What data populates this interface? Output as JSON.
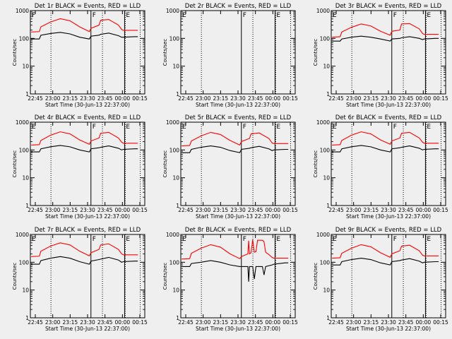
{
  "figure": {
    "background": "#efefef",
    "event_color": "#000000",
    "lld_color": "#ff0000"
  },
  "chart_data": [
    {
      "type": "line",
      "detector": "1r",
      "title": "Det 1r BLACK = Events, RED = LLD",
      "xlabel": "Start Time (30-Jun-13 22:37:00)",
      "ylabel": "Counts/sec",
      "x_ticks": [
        "22:45",
        "23:00",
        "23:15",
        "23:30",
        "23:45",
        "00:00",
        "00:15"
      ],
      "y_ticks": [
        "1",
        "10",
        "100",
        "1000"
      ],
      "yscale": "log",
      "ylim": [
        1,
        1000
      ],
      "flags": [
        {
          "label": "F",
          "pos": 5
        },
        {
          "label": "F",
          "pos": 36
        },
        {
          "label": "E",
          "pos": 56
        }
      ],
      "x": [
        0,
        5,
        6,
        12,
        18,
        24,
        30,
        36,
        37,
        42,
        43,
        48,
        54,
        56,
        57,
        64,
        66
      ],
      "series": [
        {
          "name": "BLACK = Events",
          "color": "#000000",
          "values": [
            95,
            95,
            130,
            150,
            165,
            145,
            110,
            95,
            120,
            130,
            140,
            155,
            125,
            110,
            110,
            115,
            115
          ]
        },
        {
          "name": "RED = LLD",
          "color": "#ff0000",
          "values": [
            170,
            175,
            260,
            390,
            510,
            430,
            260,
            175,
            230,
            300,
            450,
            480,
            300,
            210,
            195,
            195,
            195
          ]
        }
      ]
    },
    {
      "type": "line",
      "detector": "2r",
      "title": "Det 2r BLACK = Events, RED = LLD",
      "xlabel": "Start Time (30-Jun-13 22:37:00)",
      "ylabel": "Counts/sec",
      "x_ticks": [
        "22:45",
        "23:00",
        "23:15",
        "23:30",
        "23:45",
        "00:00",
        "00:15"
      ],
      "y_ticks": [
        "1",
        "10",
        "100",
        "1000"
      ],
      "yscale": "log",
      "ylim": [
        1,
        1000
      ],
      "flags": [
        {
          "label": "E",
          "pos": 5
        },
        {
          "label": "F",
          "pos": 36
        },
        {
          "label": "E",
          "pos": 56
        }
      ],
      "x": [],
      "series": []
    },
    {
      "type": "line",
      "detector": "3r",
      "title": "Det 3r BLACK = Events, RED = LLD",
      "xlabel": "Start Time (30-Jun-13 22:37:00)",
      "ylabel": "Counts/sec",
      "x_ticks": [
        "22:45",
        "23:00",
        "23:15",
        "23:30",
        "23:45",
        "00:00",
        "00:15"
      ],
      "y_ticks": [
        "1",
        "10",
        "100",
        "1000"
      ],
      "yscale": "log",
      "ylim": [
        1,
        1000
      ],
      "flags": [
        {
          "label": "E",
          "pos": 5
        },
        {
          "label": "F",
          "pos": 36
        },
        {
          "label": "E",
          "pos": 56
        }
      ],
      "x": [
        0,
        5,
        6,
        12,
        18,
        24,
        30,
        36,
        37,
        42,
        43,
        48,
        54,
        56,
        57,
        64,
        66
      ],
      "series": [
        {
          "name": "BLACK = Events",
          "color": "#000000",
          "values": [
            80,
            80,
            95,
            110,
            120,
            110,
            95,
            80,
            95,
            100,
            105,
            115,
            100,
            90,
            95,
            100,
            100
          ]
        },
        {
          "name": "RED = LLD",
          "color": "#ff0000",
          "values": [
            110,
            115,
            170,
            250,
            330,
            280,
            180,
            130,
            180,
            200,
            330,
            340,
            220,
            150,
            140,
            140,
            140
          ]
        }
      ]
    },
    {
      "type": "line",
      "detector": "4r",
      "title": "Det 4r BLACK = Events, RED = LLD",
      "xlabel": "Start Time (30-Jun-13 22:37:00)",
      "ylabel": "Counts/sec",
      "x_ticks": [
        "22:45",
        "23:00",
        "23:15",
        "23:30",
        "23:45",
        "00:00",
        "00:15"
      ],
      "y_ticks": [
        "1",
        "10",
        "100",
        "1000"
      ],
      "yscale": "log",
      "ylim": [
        1,
        1000
      ],
      "flags": [
        {
          "label": "E",
          "pos": 5
        },
        {
          "label": "F",
          "pos": 36
        },
        {
          "label": "E",
          "pos": 56
        }
      ],
      "x": [
        0,
        5,
        6,
        12,
        18,
        24,
        30,
        36,
        37,
        42,
        43,
        48,
        54,
        56,
        57,
        64,
        66
      ],
      "series": [
        {
          "name": "BLACK = Events",
          "color": "#000000",
          "values": [
            85,
            85,
            110,
            130,
            145,
            130,
            100,
            85,
            110,
            120,
            125,
            140,
            115,
            100,
            105,
            110,
            110
          ]
        },
        {
          "name": "RED = LLD",
          "color": "#ff0000",
          "values": [
            150,
            155,
            220,
            340,
            450,
            380,
            230,
            160,
            210,
            270,
            400,
            430,
            270,
            190,
            175,
            175,
            175
          ]
        }
      ]
    },
    {
      "type": "line",
      "detector": "5r",
      "title": "Det 5r BLACK = Events, RED = LLD",
      "xlabel": "Start Time (30-Jun-13 22:37:00)",
      "ylabel": "Counts/sec",
      "x_ticks": [
        "22:45",
        "23:00",
        "23:15",
        "23:30",
        "23:45",
        "00:00",
        "00:15"
      ],
      "y_ticks": [
        "1",
        "10",
        "100",
        "1000"
      ],
      "yscale": "log",
      "ylim": [
        1,
        1000
      ],
      "flags": [
        {
          "label": "E",
          "pos": 5
        },
        {
          "label": "F",
          "pos": 36
        },
        {
          "label": "E",
          "pos": 56
        }
      ],
      "x": [
        0,
        5,
        6,
        12,
        18,
        24,
        30,
        36,
        37,
        42,
        43,
        48,
        54,
        56,
        57,
        64,
        66
      ],
      "series": [
        {
          "name": "BLACK = Events",
          "color": "#000000",
          "values": [
            80,
            80,
            105,
            125,
            140,
            125,
            95,
            80,
            105,
            115,
            120,
            135,
            110,
            95,
            100,
            105,
            105
          ]
        },
        {
          "name": "RED = LLD",
          "color": "#ff0000",
          "values": [
            140,
            145,
            210,
            320,
            430,
            360,
            220,
            150,
            200,
            260,
            380,
            410,
            260,
            180,
            170,
            170,
            170
          ]
        }
      ]
    },
    {
      "type": "line",
      "detector": "6r",
      "title": "Det 6r BLACK = Events, RED = LLD",
      "xlabel": "Start Time (30-Jun-13 22:37:00)",
      "ylabel": "Counts/sec",
      "x_ticks": [
        "22:45",
        "23:00",
        "23:15",
        "23:30",
        "23:45",
        "00:00",
        "00:15"
      ],
      "y_ticks": [
        "1",
        "10",
        "100",
        "1000"
      ],
      "yscale": "log",
      "ylim": [
        1,
        1000
      ],
      "flags": [
        {
          "label": "E",
          "pos": 5
        },
        {
          "label": "F",
          "pos": 36
        },
        {
          "label": "E",
          "pos": 56
        }
      ],
      "x": [
        0,
        5,
        6,
        12,
        18,
        24,
        30,
        36,
        37,
        42,
        43,
        48,
        54,
        56,
        57,
        64,
        66
      ],
      "series": [
        {
          "name": "BLACK = Events",
          "color": "#000000",
          "values": [
            85,
            85,
            110,
            130,
            145,
            130,
            100,
            85,
            110,
            120,
            125,
            140,
            115,
            100,
            105,
            110,
            110
          ]
        },
        {
          "name": "RED = LLD",
          "color": "#ff0000",
          "values": [
            150,
            155,
            220,
            340,
            450,
            380,
            230,
            160,
            210,
            270,
            400,
            430,
            270,
            190,
            175,
            175,
            175
          ]
        }
      ]
    },
    {
      "type": "line",
      "detector": "7r",
      "title": "Det 7r BLACK = Events, RED = LLD",
      "xlabel": "Start Time (30-Jun-13 22:37:00)",
      "ylabel": "Counts/sec",
      "x_ticks": [
        "22:45",
        "23:00",
        "23:15",
        "23:30",
        "23:45",
        "00:00",
        "00:15"
      ],
      "y_ticks": [
        "1",
        "10",
        "100",
        "1000"
      ],
      "yscale": "log",
      "ylim": [
        1,
        1000
      ],
      "flags": [
        {
          "label": "E",
          "pos": 5
        },
        {
          "label": "F",
          "pos": 36
        },
        {
          "label": "E",
          "pos": 56
        }
      ],
      "x": [
        0,
        5,
        6,
        12,
        18,
        24,
        30,
        36,
        37,
        42,
        43,
        48,
        54,
        56,
        57,
        64,
        66
      ],
      "series": [
        {
          "name": "BLACK = Events",
          "color": "#000000",
          "values": [
            85,
            85,
            115,
            140,
            160,
            140,
            105,
            85,
            110,
            125,
            130,
            150,
            120,
            100,
            105,
            110,
            110
          ]
        },
        {
          "name": "RED = LLD",
          "color": "#ff0000",
          "values": [
            160,
            165,
            250,
            380,
            500,
            420,
            250,
            170,
            220,
            290,
            420,
            460,
            290,
            200,
            185,
            185,
            185
          ]
        }
      ]
    },
    {
      "type": "line",
      "detector": "8r",
      "title": "Det 8r BLACK = Events, RED = LLD",
      "xlabel": "Start Time (30-Jun-13 22:37:00)",
      "ylabel": "Counts/sec",
      "x_ticks": [
        "22:45",
        "23:00",
        "23:15",
        "23:30",
        "23:45",
        "00:00",
        "00:15"
      ],
      "y_ticks": [
        "1",
        "10",
        "100",
        "1000"
      ],
      "yscale": "log",
      "ylim": [
        1,
        1000
      ],
      "flags": [
        {
          "label": "E",
          "pos": 5
        },
        {
          "label": "F",
          "pos": 36
        },
        {
          "label": "E",
          "pos": 56
        }
      ],
      "x": [
        0,
        5,
        6,
        12,
        18,
        24,
        30,
        36,
        37,
        41,
        41.5,
        42,
        43,
        44,
        45,
        46,
        47,
        48,
        50,
        51,
        52,
        54,
        56,
        57,
        64,
        66
      ],
      "series": [
        {
          "name": "BLACK = Events",
          "color": "#000000",
          "values": [
            70,
            70,
            90,
            100,
            115,
            100,
            80,
            70,
            70,
            70,
            20,
            70,
            70,
            70,
            25,
            70,
            70,
            70,
            70,
            35,
            70,
            75,
            80,
            85,
            95,
            95
          ]
        },
        {
          "name": "RED = LLD",
          "color": "#ff0000",
          "values": [
            130,
            135,
            210,
            320,
            430,
            350,
            200,
            135,
            160,
            200,
            600,
            200,
            220,
            650,
            230,
            240,
            620,
            620,
            620,
            550,
            230,
            190,
            150,
            140,
            140,
            140
          ]
        }
      ]
    },
    {
      "type": "line",
      "detector": "9r",
      "title": "Det 9r BLACK = Events, RED = LLD",
      "xlabel": "Start Time (30-Jun-13 22:37:00)",
      "ylabel": "Counts/sec",
      "x_ticks": [
        "22:45",
        "23:00",
        "23:15",
        "23:30",
        "23:45",
        "00:00",
        "00:15"
      ],
      "y_ticks": [
        "1",
        "10",
        "100",
        "1000"
      ],
      "yscale": "log",
      "ylim": [
        1,
        1000
      ],
      "flags": [
        {
          "label": "E",
          "pos": 5
        },
        {
          "label": "F",
          "pos": 36
        },
        {
          "label": "E",
          "pos": 56
        }
      ],
      "x": [
        0,
        5,
        6,
        12,
        18,
        24,
        30,
        36,
        37,
        42,
        43,
        48,
        54,
        56,
        57,
        64,
        66
      ],
      "series": [
        {
          "name": "BLACK = Events",
          "color": "#000000",
          "values": [
            80,
            80,
            105,
            125,
            140,
            125,
            95,
            80,
            105,
            115,
            120,
            135,
            110,
            95,
            100,
            105,
            105
          ]
        },
        {
          "name": "RED = LLD",
          "color": "#ff0000",
          "values": [
            140,
            145,
            210,
            320,
            430,
            360,
            220,
            150,
            200,
            260,
            380,
            410,
            260,
            180,
            170,
            170,
            170
          ]
        }
      ]
    }
  ]
}
